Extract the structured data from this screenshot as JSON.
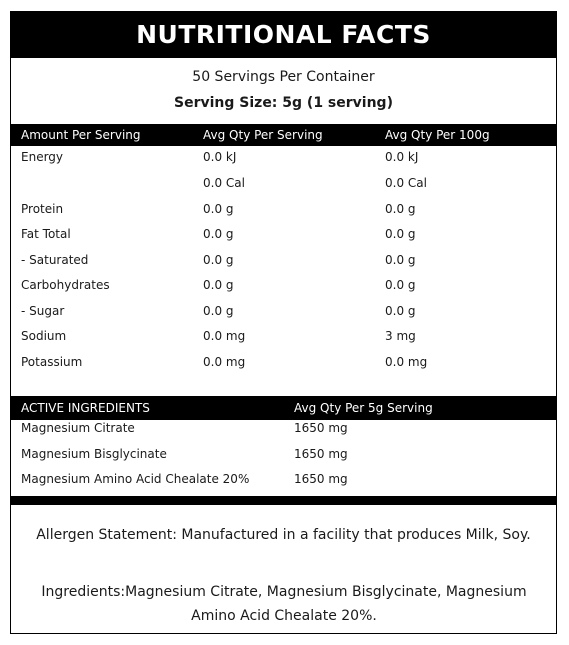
{
  "title": "NUTRITIONAL FACTS",
  "servings_per_container": "50 Servings Per Container",
  "serving_size": "Serving Size: 5g (1 serving)",
  "nutrition_header": [
    "Amount Per Serving",
    "Avg Qty Per Serving",
    "Avg Qty Per 100g"
  ],
  "nutrition_rows": [
    {
      "name": "Energy",
      "per_serving": "0.0 kJ",
      "per_100g": "0.0 kJ"
    },
    {
      "name": "",
      "per_serving": "0.0 Cal",
      "per_100g": "0.0 Cal"
    },
    {
      "name": "Protein",
      "per_serving": "0.0 g",
      "per_100g": "0.0 g"
    },
    {
      "name": "Fat Total",
      "per_serving": "0.0 g",
      "per_100g": "0.0 g"
    },
    {
      "name": "- Saturated",
      "per_serving": "0.0 g",
      "per_100g": "0.0 g"
    },
    {
      "name": "Carbohydrates",
      "per_serving": "0.0 g",
      "per_100g": "0.0 g"
    },
    {
      "name": "- Sugar",
      "per_serving": "0.0 g",
      "per_100g": "0.0 g"
    },
    {
      "name": "Sodium",
      "per_serving": "0.0 mg",
      "per_100g": "3 mg"
    },
    {
      "name": "Potassium",
      "per_serving": "0.0 mg",
      "per_100g": "0.0 mg"
    }
  ],
  "active_header": [
    "ACTIVE INGREDIENTS",
    "Avg Qty Per 5g Serving"
  ],
  "active_rows": [
    {
      "name": "Magnesium Citrate",
      "amount": "1650 mg"
    },
    {
      "name": "Magnesium Bisglycinate",
      "amount": "1650 mg"
    },
    {
      "name": "Magnesium Amino Acid Chealate 20%",
      "amount": "1650 mg"
    }
  ],
  "allergen_statement": "Allergen Statement: Manufactured in a facility that produces Milk, Soy.",
  "ingredients": "Ingredients:Magnesium Citrate, Magnesium Bisglycinate, Magnesium Amino Acid Chealate 20%."
}
